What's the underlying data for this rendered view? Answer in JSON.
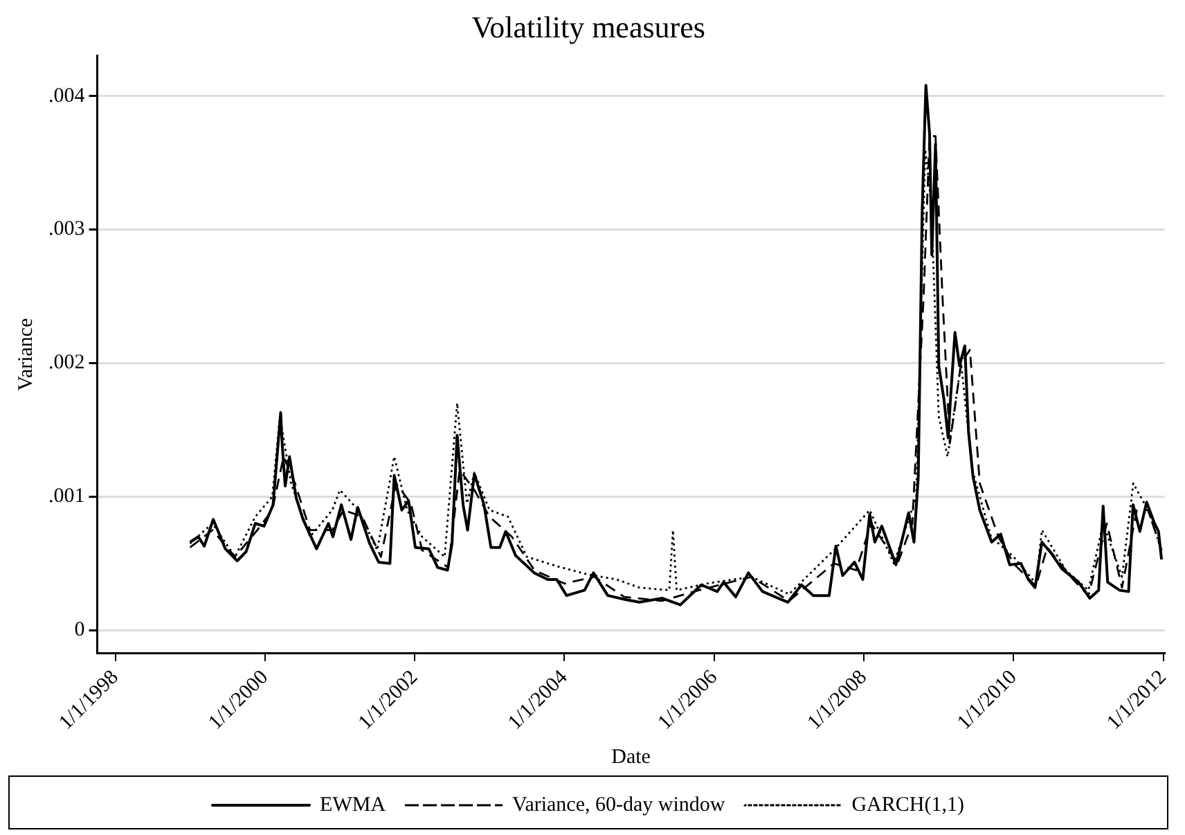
{
  "chart_data": {
    "type": "line",
    "title": "Volatility measures",
    "xlabel": "Date",
    "ylabel": "Variance",
    "xlim": [
      "1997-10-05",
      "2012-01-08"
    ],
    "ylim": [
      -0.00017,
      0.0043
    ],
    "xticks": [
      {
        "value": "1998-01-01",
        "label": "1/1/1998"
      },
      {
        "value": "2000-01-01",
        "label": "1/1/2000"
      },
      {
        "value": "2002-01-01",
        "label": "1/1/2002"
      },
      {
        "value": "2004-01-01",
        "label": "1/1/2004"
      },
      {
        "value": "2006-01-01",
        "label": "1/1/2006"
      },
      {
        "value": "2008-01-01",
        "label": "1/1/2008"
      },
      {
        "value": "2010-01-01",
        "label": "1/1/2010"
      },
      {
        "value": "2012-01-01",
        "label": "1/1/2012"
      }
    ],
    "yticks": [
      0,
      {
        "value": 0.001,
        "label": ".001"
      },
      {
        "value": 0.002,
        "label": ".002"
      },
      {
        "value": 0.003,
        "label": ".003"
      },
      {
        "value": 0.004,
        "label": ".004"
      }
    ],
    "grid": "y",
    "legend": "bottom",
    "marker": "none",
    "series": [
      {
        "name": "EWMA",
        "color": "#000000",
        "line_style": "solid",
        "x": [
          "1999-01-01",
          "1999-02-10",
          "1999-03-11",
          "1999-04-24",
          "1999-06-22",
          "1999-08-19",
          "1999-10-02",
          "1999-11-15",
          "1999-12-28",
          "2000-02-10",
          "2000-03-18",
          "2000-03-25",
          "2000-04-09",
          "2000-04-30",
          "2000-06-02",
          "2000-07-05",
          "2000-09-09",
          "2000-11-06",
          "2000-11-28",
          "2001-01-08",
          "2001-02-24",
          "2001-03-29",
          "2001-05-26",
          "2001-07-09",
          "2001-09-02",
          "2001-09-23",
          "2001-10-30",
          "2001-12-02",
          "2002-01-04",
          "2002-03-11",
          "2002-04-23",
          "2002-06-10",
          "2002-07-02",
          "2002-07-27",
          "2002-08-25",
          "2002-09-16",
          "2002-10-19",
          "2002-12-05",
          "2003-01-08",
          "2003-02-20",
          "2003-03-21",
          "2003-05-08",
          "2003-08-07",
          "2003-10-12",
          "2003-11-25",
          "2004-01-12",
          "2004-04-09",
          "2004-05-22",
          "2004-07-31",
          "2004-10-26",
          "2005-01-01",
          "2005-04-23",
          "2005-07-20",
          "2005-10-30",
          "2006-01-16",
          "2006-02-16",
          "2006-04-16",
          "2006-06-17",
          "2006-08-25",
          "2006-12-27",
          "2007-03-03",
          "2007-04-30",
          "2007-07-16",
          "2007-08-18",
          "2007-09-20",
          "2007-11-17",
          "2007-12-27",
          "2008-01-30",
          "2008-02-24",
          "2008-03-29",
          "2008-06-06",
          "2008-08-07",
          "2008-09-02",
          "2008-09-23",
          "2008-10-12",
          "2008-10-30",
          "2008-11-17",
          "2008-11-28",
          "2008-12-16",
          "2009-01-01",
          "2009-01-26",
          "2009-02-16",
          "2009-02-27",
          "2009-03-21",
          "2009-04-12",
          "2009-05-08",
          "2009-05-26",
          "2009-06-17",
          "2009-07-20",
          "2009-09-16",
          "2009-10-30",
          "2009-12-13",
          "2010-02-06",
          "2010-03-14",
          "2010-04-16",
          "2010-05-19",
          "2010-07-02",
          "2010-08-25",
          "2010-11-14",
          "2011-01-08",
          "2011-02-20",
          "2011-03-14",
          "2011-04-05",
          "2011-06-02",
          "2011-07-16",
          "2011-08-07",
          "2011-09-09",
          "2011-10-12",
          "2011-11-17",
          "2011-12-09",
          "2011-12-24"
        ],
        "values": [
          0.00066,
          0.0007,
          0.00063,
          0.00083,
          0.00061,
          0.00052,
          0.00059,
          0.0008,
          0.00078,
          0.00094,
          0.00163,
          0.0014,
          0.00108,
          0.0013,
          0.00099,
          0.00083,
          0.00061,
          0.0008,
          0.0007,
          0.00094,
          0.00068,
          0.00092,
          0.00065,
          0.00051,
          0.0005,
          0.00116,
          0.0009,
          0.00097,
          0.00062,
          0.00061,
          0.00047,
          0.00045,
          0.00065,
          0.00146,
          0.00094,
          0.00075,
          0.00117,
          0.00094,
          0.00062,
          0.00062,
          0.00074,
          0.00056,
          0.00043,
          0.00038,
          0.00038,
          0.00026,
          0.0003,
          0.00043,
          0.00026,
          0.00023,
          0.00021,
          0.00024,
          0.00019,
          0.00034,
          0.00029,
          0.00036,
          0.00025,
          0.00043,
          0.00029,
          0.00021,
          0.00034,
          0.00026,
          0.00026,
          0.00063,
          0.00041,
          0.00051,
          0.00038,
          0.00087,
          0.00066,
          0.00078,
          0.00049,
          0.00088,
          0.00066,
          0.00115,
          0.00314,
          0.00408,
          0.00372,
          0.00281,
          0.00364,
          0.00198,
          0.00173,
          0.00144,
          0.00173,
          0.00223,
          0.00198,
          0.00213,
          0.00149,
          0.00115,
          0.0009,
          0.00066,
          0.00072,
          0.00049,
          0.0005,
          0.00038,
          0.00032,
          0.00066,
          0.00058,
          0.00046,
          0.00036,
          0.00024,
          0.0003,
          0.00093,
          0.00036,
          0.0003,
          0.00029,
          0.00094,
          0.00074,
          0.00096,
          0.00081,
          0.00074,
          0.00053
        ]
      },
      {
        "name": "Variance, 60-day window",
        "color": "#000000",
        "line_style": "dashed",
        "x": [
          "1999-01-01",
          "1999-04-20",
          "1999-08-08",
          "1999-11-25",
          "2000-02-06",
          "2000-04-01",
          "2000-05-27",
          "2000-08-08",
          "2000-11-25",
          "2001-01-19",
          "2001-04-20",
          "2001-07-20",
          "2001-10-02",
          "2001-12-13",
          "2002-02-06",
          "2002-06-14",
          "2002-08-08",
          "2002-10-19",
          "2003-01-01",
          "2003-04-20",
          "2003-08-08",
          "2004-01-01",
          "2004-05-27",
          "2004-10-19",
          "2005-04-20",
          "2005-10-19",
          "2006-07-02",
          "2007-01-01",
          "2007-08-08",
          "2007-11-25",
          "2008-02-06",
          "2008-06-14",
          "2008-08-25",
          "2008-10-19",
          "2008-11-17",
          "2008-12-16",
          "2009-01-19",
          "2009-02-24",
          "2009-04-20",
          "2009-06-02",
          "2009-07-20",
          "2009-10-19",
          "2010-01-01",
          "2010-04-20",
          "2010-06-14",
          "2010-10-19",
          "2011-01-01",
          "2011-04-01",
          "2011-06-14",
          "2011-08-25",
          "2011-10-19",
          "2011-12-24"
        ],
        "values": [
          0.00062,
          0.00075,
          0.00055,
          0.00075,
          0.0009,
          0.0013,
          0.0011,
          0.00075,
          0.00075,
          0.0009,
          0.00085,
          0.00055,
          0.0011,
          0.00095,
          0.0006,
          0.00047,
          0.0012,
          0.00105,
          0.00085,
          0.0007,
          0.00045,
          0.00035,
          0.0004,
          0.00025,
          0.00022,
          0.0003,
          0.0004,
          0.00022,
          0.0005,
          0.00045,
          0.0008,
          0.0005,
          0.0008,
          0.0025,
          0.0037,
          0.0037,
          0.0025,
          0.0014,
          0.002,
          0.0021,
          0.0011,
          0.0007,
          0.0005,
          0.00033,
          0.00062,
          0.00038,
          0.00026,
          0.0008,
          0.00032,
          0.0009,
          0.0009,
          0.0006
        ]
      },
      {
        "name": "GARCH(1,1)",
        "color": "#000000",
        "line_style": "dotted",
        "x": [
          "1999-01-01",
          "1999-04-20",
          "1999-08-08",
          "1999-11-15",
          "2000-02-06",
          "2000-03-14",
          "2000-05-08",
          "2000-08-08",
          "2000-11-25",
          "2001-01-01",
          "2001-04-01",
          "2001-07-02",
          "2001-09-23",
          "2001-11-25",
          "2002-02-06",
          "2002-05-27",
          "2002-07-27",
          "2002-09-13",
          "2002-10-19",
          "2003-01-01",
          "2003-04-01",
          "2003-07-02",
          "2003-11-25",
          "2004-04-20",
          "2004-09-13",
          "2005-01-01",
          "2005-05-27",
          "2005-06-14",
          "2005-07-02",
          "2005-11-25",
          "2006-07-02",
          "2007-01-01",
          "2007-08-08",
          "2008-01-30",
          "2008-05-27",
          "2008-09-13",
          "2008-10-27",
          "2008-11-25",
          "2009-01-01",
          "2009-02-13",
          "2009-04-20",
          "2009-06-14",
          "2009-09-13",
          "2010-01-01",
          "2010-04-20",
          "2010-05-19",
          "2010-09-13",
          "2011-01-01",
          "2011-03-14",
          "2011-06-14",
          "2011-08-08",
          "2011-10-19",
          "2011-12-24"
        ],
        "values": [
          0.00065,
          0.0008,
          0.00055,
          0.00085,
          0.001,
          0.0016,
          0.0011,
          0.0007,
          0.0009,
          0.00105,
          0.0009,
          0.0006,
          0.0013,
          0.0009,
          0.0007,
          0.00055,
          0.0017,
          0.00095,
          0.00118,
          0.0009,
          0.00085,
          0.00055,
          0.00048,
          0.00042,
          0.00038,
          0.00032,
          0.0003,
          0.00075,
          0.0003,
          0.00035,
          0.0004,
          0.00027,
          0.0006,
          0.0009,
          0.0005,
          0.001,
          0.0036,
          0.0032,
          0.0016,
          0.0013,
          0.002,
          0.0012,
          0.0007,
          0.00055,
          0.00035,
          0.00075,
          0.00045,
          0.0003,
          0.0008,
          0.0004,
          0.0011,
          0.0009,
          0.0006
        ]
      }
    ]
  }
}
